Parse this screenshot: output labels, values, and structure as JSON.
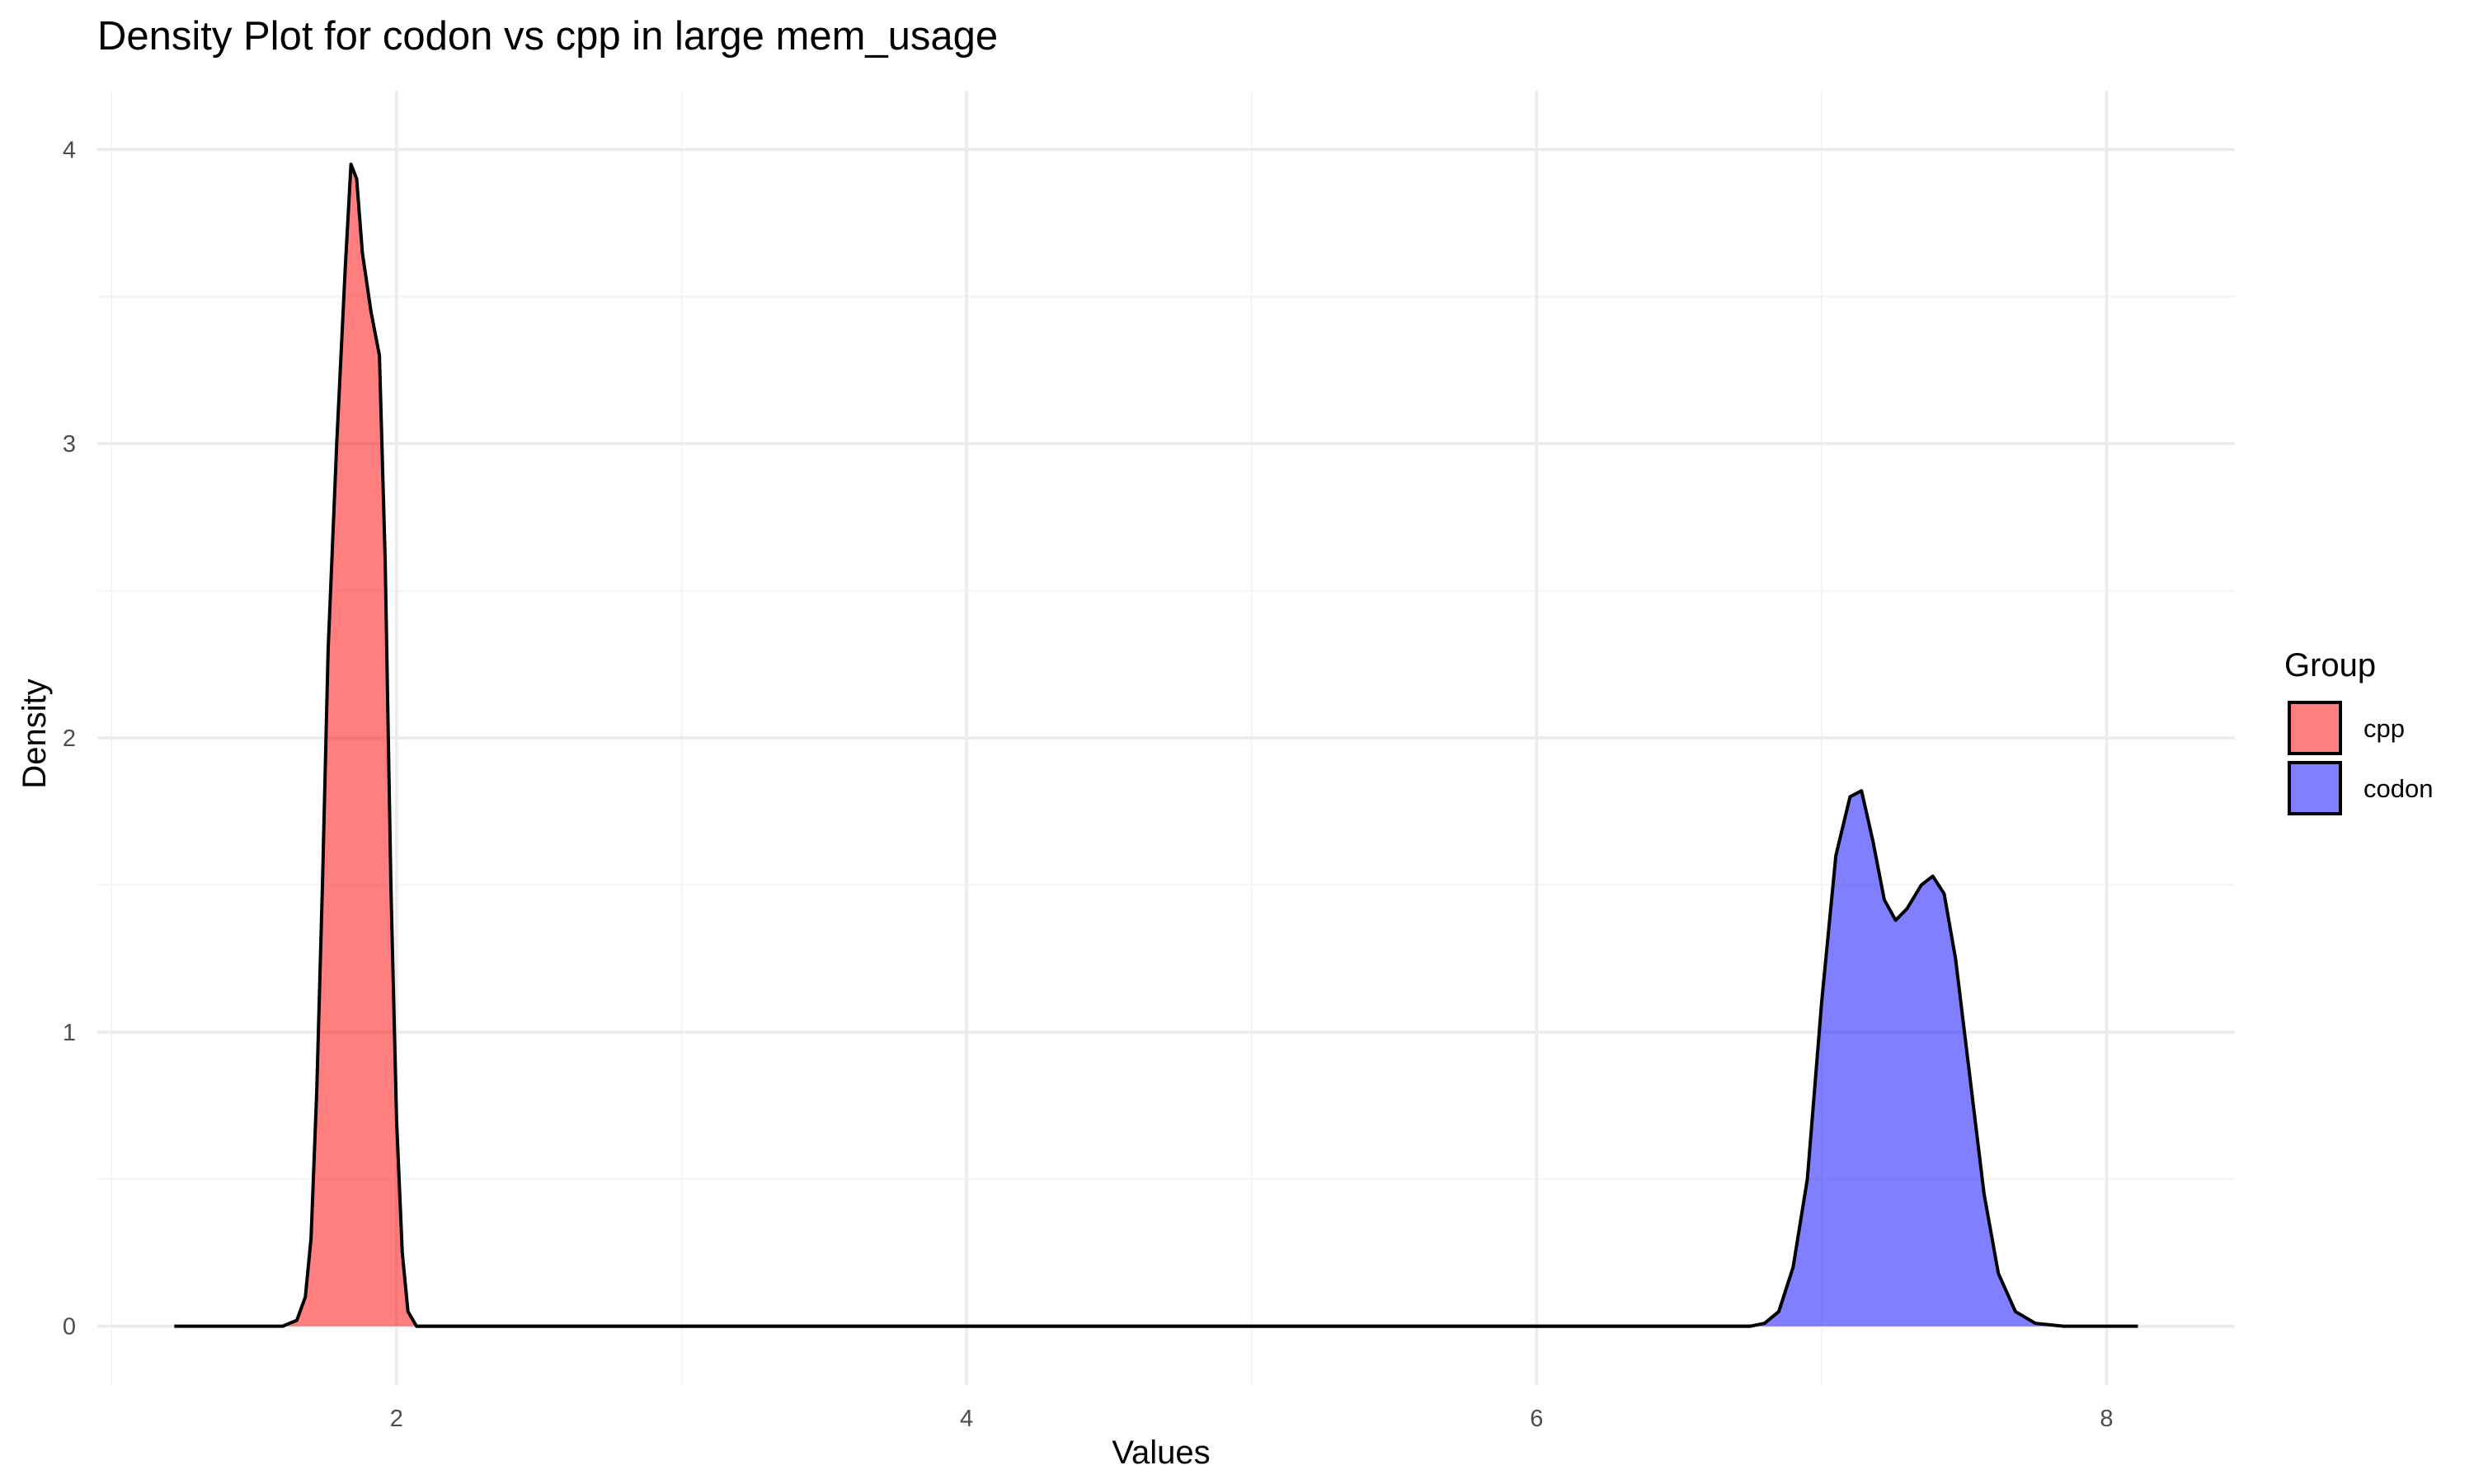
{
  "chart_data": {
    "type": "area",
    "title": "Density Plot for codon vs cpp in large mem_usage",
    "xlabel": "Values",
    "ylabel": "Density",
    "xlim": [
      0.95,
      8.45
    ],
    "ylim": [
      -0.2,
      4.2
    ],
    "x_ticks": [
      2,
      4,
      6,
      8
    ],
    "y_ticks": [
      0,
      1,
      2,
      3,
      4
    ],
    "x_minor": [
      1,
      3,
      5,
      7
    ],
    "y_minor": [
      0.5,
      1.5,
      2.5,
      3.5
    ],
    "grid": true,
    "legend": {
      "title": "Group",
      "position": "right"
    },
    "series": [
      {
        "name": "cpp",
        "color": "#ff0000",
        "fill_opacity": 0.5,
        "points": [
          [
            1.22,
            0.0
          ],
          [
            1.6,
            0.0
          ],
          [
            1.65,
            0.02
          ],
          [
            1.68,
            0.1
          ],
          [
            1.7,
            0.3
          ],
          [
            1.72,
            0.8
          ],
          [
            1.74,
            1.5
          ],
          [
            1.76,
            2.3
          ],
          [
            1.79,
            3.0
          ],
          [
            1.82,
            3.6
          ],
          [
            1.84,
            3.95
          ],
          [
            1.86,
            3.9
          ],
          [
            1.88,
            3.65
          ],
          [
            1.91,
            3.45
          ],
          [
            1.94,
            3.3
          ],
          [
            1.96,
            2.6
          ],
          [
            1.98,
            1.5
          ],
          [
            2.0,
            0.7
          ],
          [
            2.02,
            0.25
          ],
          [
            2.04,
            0.05
          ],
          [
            2.07,
            0.0
          ],
          [
            6.75,
            0.0
          ]
        ]
      },
      {
        "name": "codon",
        "color": "#0000ff",
        "fill_opacity": 0.5,
        "points": [
          [
            2.07,
            0.0
          ],
          [
            6.75,
            0.0
          ],
          [
            6.8,
            0.01
          ],
          [
            6.85,
            0.05
          ],
          [
            6.9,
            0.2
          ],
          [
            6.95,
            0.5
          ],
          [
            7.0,
            1.1
          ],
          [
            7.05,
            1.6
          ],
          [
            7.1,
            1.8
          ],
          [
            7.14,
            1.82
          ],
          [
            7.18,
            1.65
          ],
          [
            7.22,
            1.45
          ],
          [
            7.26,
            1.38
          ],
          [
            7.3,
            1.42
          ],
          [
            7.35,
            1.5
          ],
          [
            7.39,
            1.53
          ],
          [
            7.43,
            1.47
          ],
          [
            7.47,
            1.25
          ],
          [
            7.52,
            0.85
          ],
          [
            7.57,
            0.45
          ],
          [
            7.62,
            0.18
          ],
          [
            7.68,
            0.05
          ],
          [
            7.75,
            0.01
          ],
          [
            7.85,
            0.0
          ],
          [
            8.11,
            0.0
          ]
        ]
      }
    ]
  }
}
